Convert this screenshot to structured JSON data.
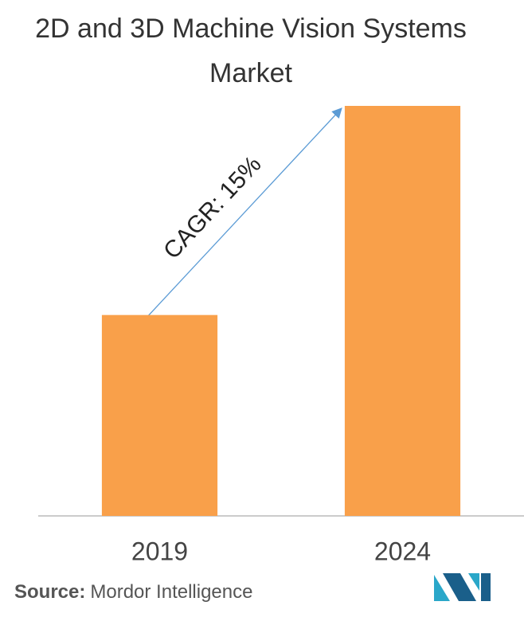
{
  "chart_data": {
    "type": "bar",
    "title": "2D and 3D Machine Vision Systems  Market",
    "categories": [
      "2019",
      "2024"
    ],
    "values": [
      49,
      100
    ],
    "color": "#f9a04a",
    "ylim": [
      0,
      100
    ],
    "annotation": "CAGR: 15%",
    "source_label": "Source:",
    "source": "Mordor Intelligence"
  }
}
